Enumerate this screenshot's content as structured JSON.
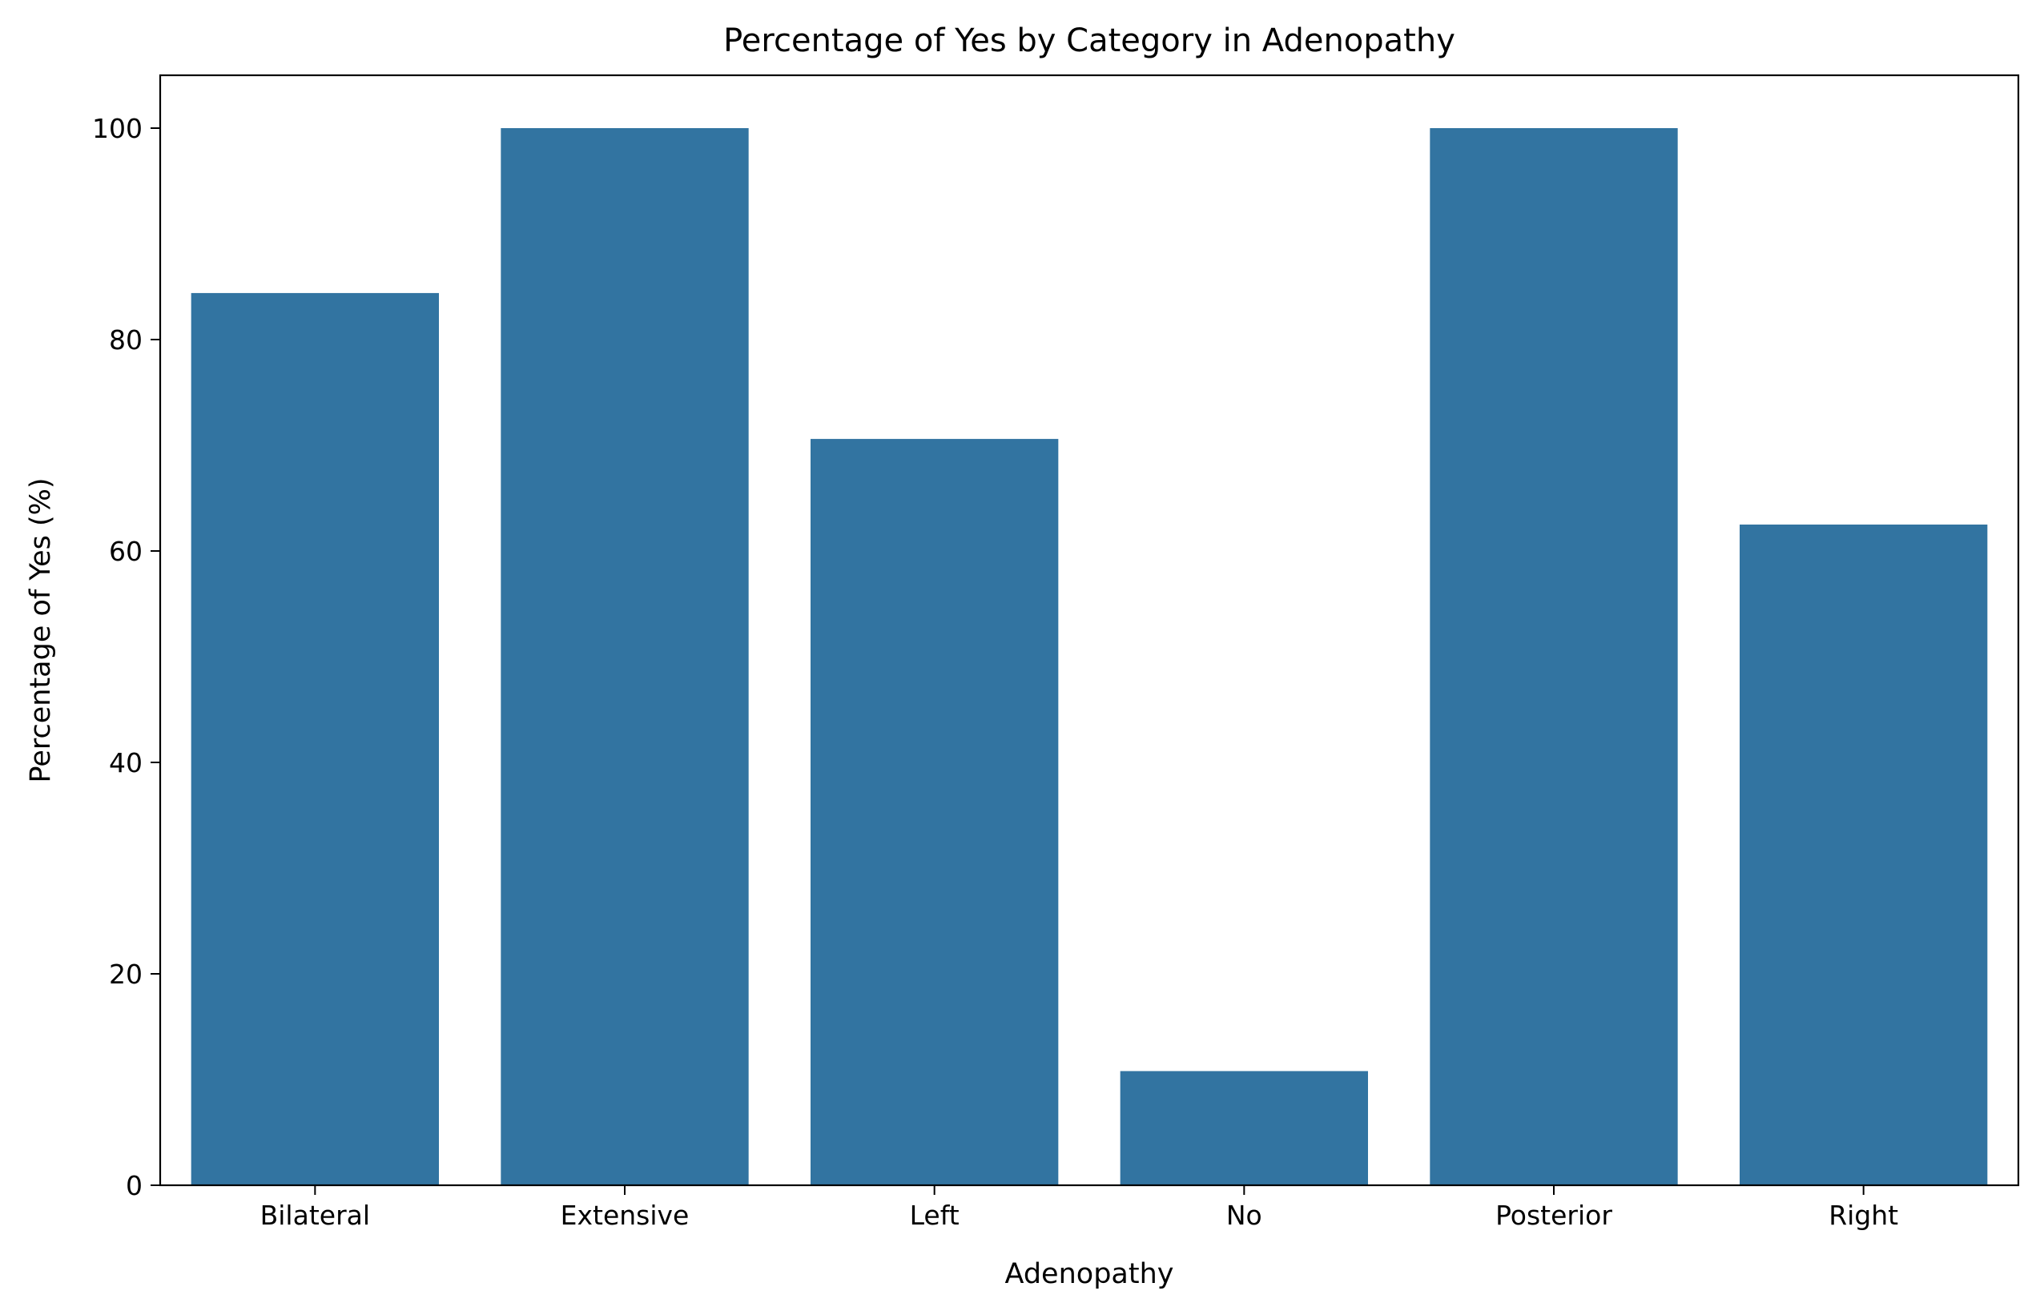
{
  "chart_data": {
    "type": "bar",
    "title": "Percentage of Yes by Category in Adenopathy",
    "xlabel": "Adenopathy",
    "ylabel": "Percentage of Yes (%)",
    "categories": [
      "Bilateral",
      "Extensive",
      "Left",
      "No",
      "Posterior",
      "Right"
    ],
    "values": [
      84.4,
      100,
      70.6,
      10.8,
      100,
      62.5
    ],
    "ylim": [
      0,
      105
    ],
    "yticks": [
      0,
      20,
      40,
      60,
      80,
      100
    ],
    "ytick_labels": [
      "0",
      "20",
      "40",
      "60",
      "80",
      "100"
    ],
    "bar_color": "#3274a1",
    "grid": false,
    "legend": "none"
  }
}
